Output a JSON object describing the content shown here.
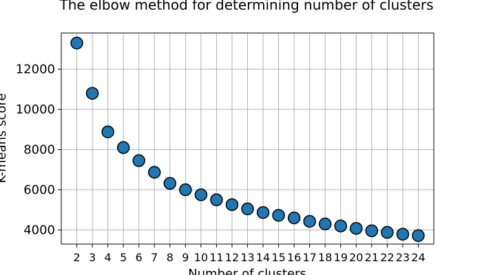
{
  "chart_data": {
    "type": "scatter",
    "title": "The elbow method for determining number of clusters",
    "xlabel": "Number of clusters",
    "ylabel": "K-means score",
    "x": [
      2,
      3,
      4,
      5,
      6,
      7,
      8,
      9,
      10,
      11,
      12,
      13,
      14,
      15,
      16,
      17,
      18,
      19,
      20,
      21,
      22,
      23,
      24
    ],
    "y": [
      13300,
      10800,
      8880,
      8100,
      7450,
      6870,
      6320,
      6000,
      5750,
      5500,
      5260,
      5050,
      4870,
      4730,
      4600,
      4430,
      4300,
      4200,
      4080,
      3960,
      3880,
      3790,
      3720
    ],
    "xlim": [
      1,
      25
    ],
    "ylim": [
      3300,
      13800
    ],
    "xticks": [
      2,
      3,
      4,
      5,
      6,
      7,
      8,
      9,
      10,
      11,
      12,
      13,
      14,
      15,
      16,
      17,
      18,
      19,
      20,
      21,
      22,
      23,
      24
    ],
    "yticks": [
      4000,
      6000,
      8000,
      10000,
      12000
    ],
    "grid": true,
    "marker_color": "#1f77b4",
    "edge_color": "#000000"
  }
}
